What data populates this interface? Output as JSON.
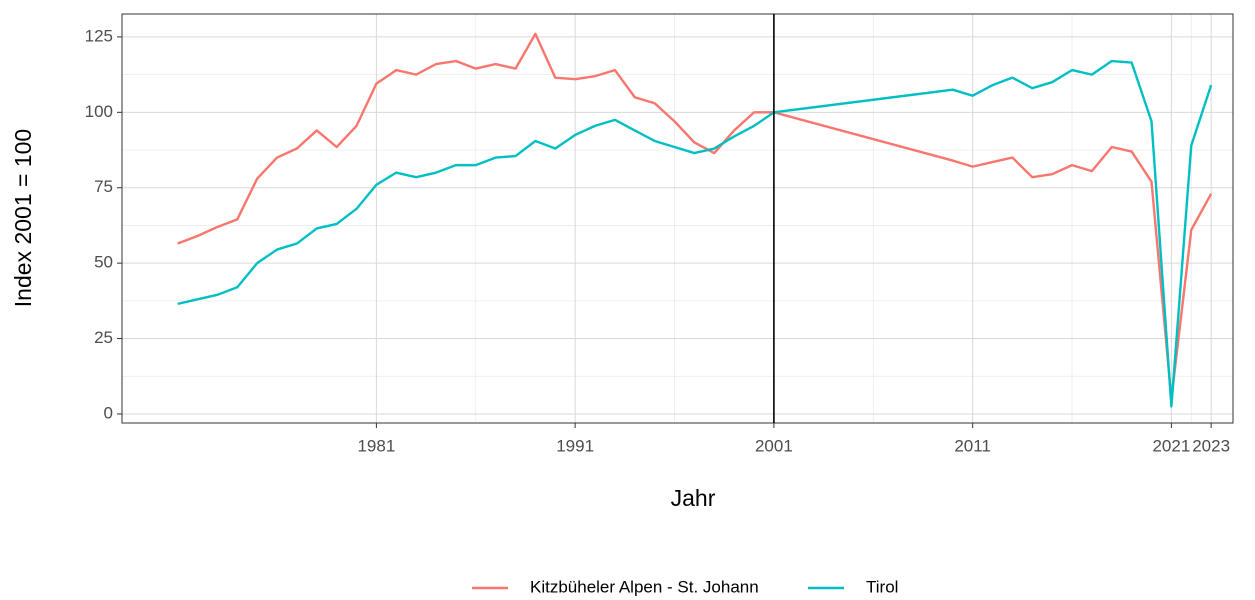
{
  "chart_data": {
    "type": "line",
    "xlabel": "Jahr",
    "ylabel": "Index 2001 = 100",
    "x": [
      1971,
      1972,
      1973,
      1974,
      1975,
      1976,
      1977,
      1978,
      1979,
      1980,
      1981,
      1982,
      1983,
      1984,
      1985,
      1986,
      1987,
      1988,
      1989,
      1990,
      1991,
      1992,
      1993,
      1994,
      1995,
      1996,
      1997,
      1998,
      1999,
      2000,
      2001,
      2010,
      2011,
      2012,
      2013,
      2014,
      2015,
      2016,
      2017,
      2018,
      2019,
      2020,
      2021,
      2022,
      2023
    ],
    "series": [
      {
        "name": "Kitzbüheler Alpen - St. Johann",
        "color": "#F8766D",
        "values": [
          56.5,
          59,
          62,
          64.5,
          78,
          85,
          88,
          94,
          88.5,
          95.5,
          109.5,
          114,
          112.5,
          116,
          117,
          114.5,
          116,
          114.5,
          126,
          111.5,
          111,
          112,
          114,
          105,
          103,
          97,
          90,
          86.5,
          94,
          100,
          100,
          84,
          82,
          83.5,
          85,
          78.5,
          79.5,
          82.5,
          80.5,
          88.5,
          87,
          77,
          5,
          61,
          73
        ]
      },
      {
        "name": "Tirol",
        "color": "#00BFC4",
        "values": [
          36.5,
          38,
          39.5,
          42,
          50,
          54.5,
          56.5,
          61.5,
          63,
          68,
          76,
          80,
          78.5,
          80,
          82.5,
          82.5,
          85,
          85.5,
          90.5,
          88,
          92.5,
          95.5,
          97.5,
          94,
          90.5,
          88.5,
          86.5,
          88,
          92,
          95.5,
          100,
          107.5,
          105.5,
          109,
          111.5,
          108,
          110,
          114,
          112.5,
          117,
          116.5,
          97,
          2.5,
          89,
          109
        ]
      }
    ],
    "xlim": [
      1968.2,
      2024.1
    ],
    "xticks": [
      1981,
      1991,
      2001,
      2011,
      2021,
      2023
    ],
    "ylim": [
      -3,
      132.6
    ],
    "yticks": [
      0,
      25,
      50,
      75,
      100,
      125
    ],
    "vline": 2001,
    "grid": true,
    "legend": "bottom"
  }
}
